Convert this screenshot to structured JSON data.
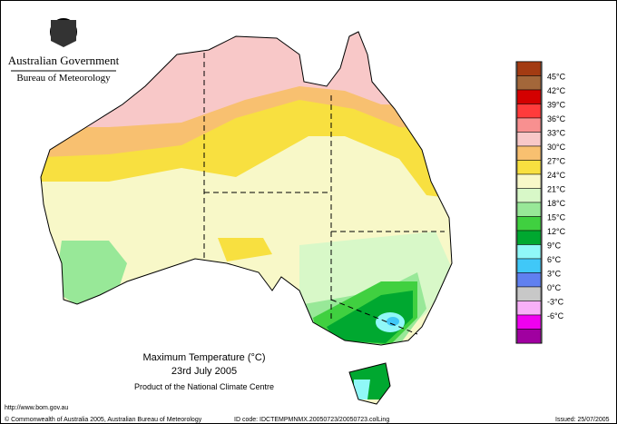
{
  "header": {
    "agency": "Australian Government",
    "bureau": "Bureau of Meteorology"
  },
  "map": {
    "title": "Maximum Temperature (°C)",
    "date": "23rd July 2005",
    "product": "Product of the National Climate Centre"
  },
  "legend": {
    "colors": [
      "#a33b12",
      "#a3673a",
      "#d40000",
      "#ff3b3b",
      "#f89090",
      "#f8c8c8",
      "#f8c070",
      "#f8e040",
      "#f8f8c8",
      "#d8f8c8",
      "#98e898",
      "#40d040",
      "#00a830",
      "#90f8f8",
      "#40c8f8",
      "#6080f0",
      "#c8c8c8",
      "#f8b0f8",
      "#f000f0",
      "#a000a0"
    ],
    "labels": [
      "45°C",
      "42°C",
      "39°C",
      "36°C",
      "33°C",
      "30°C",
      "27°C",
      "24°C",
      "21°C",
      "18°C",
      "15°C",
      "12°C",
      "9°C",
      "6°C",
      "3°C",
      "0°C",
      "-3°C",
      "-6°C"
    ]
  },
  "footer": {
    "url": "http://www.bom.gov.au",
    "copyright": "© Commonwealth of Australia 2005, Australian Bureau of Meteorology",
    "id_code": "ID code: IDCTEMPMNMX.20050723/20050723.colLing",
    "issued": "Issued: 25/07/2005"
  }
}
